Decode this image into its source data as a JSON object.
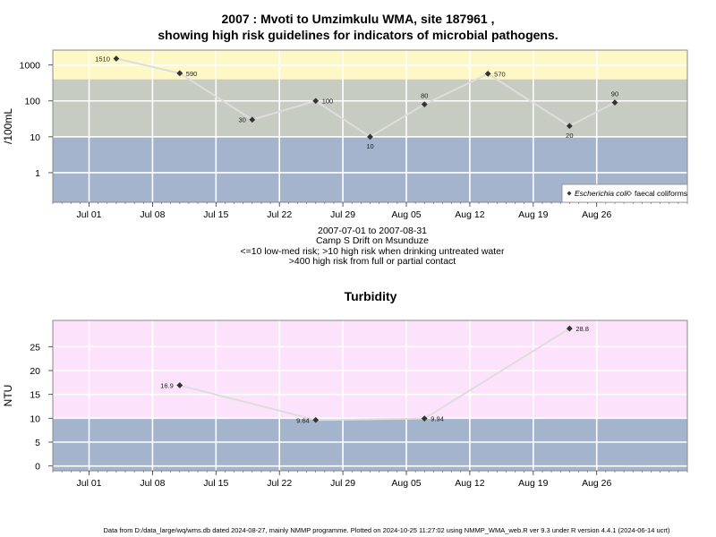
{
  "header": {
    "title_line1": "2007 : Mvoti to Umzimkulu WMA, site 187961 ,",
    "title_line2": "showing high risk guidelines for indicators of microbial pathogens."
  },
  "subtitle": {
    "line1": "2007-07-01 to 2007-08-31",
    "line2": "Camp S Drift on Msunduze",
    "line3": "<=10 low-med risk; >10 high risk when drinking untreated water",
    "line4": ">400 high risk from full or partial contact"
  },
  "footer": {
    "text": "Data from D:/data_large/wq/wms.db dated 2024-08-27, mainly NMMP programme. Plotted on 2024-10-25 11:27:02 using NMMP_WMA_web.R ver 9.3 under R version 4.4.1 (2024-06-14 ucrt)"
  },
  "colors": {
    "band_low": "#a3b4cc",
    "band_mid": "#c7ccc2",
    "band_high": "#fdf8c5",
    "band_turb_high": "#fde2fb",
    "line": "#dddddd",
    "point": "#333333"
  },
  "chart_data": [
    {
      "type": "line",
      "title": "",
      "ylabel": "/100mL",
      "yscale": "log",
      "ylim": [
        0.15,
        2600
      ],
      "x_range": [
        "2007-06-27",
        "2007-09-05"
      ],
      "y_ticks": [
        1,
        10,
        100,
        1000
      ],
      "y_tick_labels": [
        "1",
        "10",
        "100",
        "1000"
      ],
      "x_ticks": [
        "2007-07-01",
        "2007-07-08",
        "2007-07-15",
        "2007-07-22",
        "2007-07-29",
        "2007-08-05",
        "2007-08-12",
        "2007-08-19",
        "2007-08-26"
      ],
      "x_tick_labels": [
        "Jul 01",
        "Jul 08",
        "Jul 15",
        "Jul 22",
        "Jul 29",
        "Aug 05",
        "Aug 12",
        "Aug 19",
        "Aug 26"
      ],
      "bands": [
        {
          "from": 0.15,
          "to": 10,
          "color": "#a3b4cc"
        },
        {
          "from": 10,
          "to": 400,
          "color": "#c7ccc2"
        },
        {
          "from": 400,
          "to": 2600,
          "color": "#fdf8c5"
        }
      ],
      "legend_position": "bottom-right",
      "legend": [
        "Escherichia coli",
        "faecal coliforms"
      ],
      "series": [
        {
          "name": "Escherichia coli",
          "x": [
            "2007-07-04",
            "2007-07-11",
            "2007-07-19",
            "2007-07-26",
            "2007-08-01",
            "2007-08-07",
            "2007-08-14",
            "2007-08-23",
            "2007-08-28"
          ],
          "values": [
            1510,
            590,
            30,
            100,
            10,
            80,
            570,
            20,
            90
          ],
          "labels": [
            "1510",
            "590",
            "30",
            "100",
            "10",
            "80",
            "570",
            "20",
            "90"
          ]
        }
      ]
    },
    {
      "type": "line",
      "title": "Turbidity",
      "ylabel": "NTU",
      "ylim": [
        -1,
        30.5
      ],
      "x_range": [
        "2007-06-27",
        "2007-09-05"
      ],
      "y_ticks": [
        0,
        5,
        10,
        15,
        20,
        25
      ],
      "y_tick_labels": [
        "0",
        "5",
        "10",
        "15",
        "20",
        "25"
      ],
      "x_ticks": [
        "2007-07-01",
        "2007-07-08",
        "2007-07-15",
        "2007-07-22",
        "2007-07-29",
        "2007-08-05",
        "2007-08-12",
        "2007-08-19",
        "2007-08-26"
      ],
      "x_tick_labels": [
        "Jul 01",
        "Jul 08",
        "Jul 15",
        "Jul 22",
        "Jul 29",
        "Aug 05",
        "Aug 12",
        "Aug 19",
        "Aug 26"
      ],
      "bands": [
        {
          "from": -1,
          "to": 10,
          "color": "#a3b4cc"
        },
        {
          "from": 10,
          "to": 30.5,
          "color": "#fde2fb"
        }
      ],
      "series": [
        {
          "x": [
            "2007-07-11",
            "2007-07-26",
            "2007-08-07",
            "2007-08-23"
          ],
          "values": [
            16.9,
            9.64,
            9.94,
            28.8
          ],
          "labels": [
            "16.9",
            "9.64",
            "9.94",
            "28.8"
          ]
        }
      ]
    }
  ]
}
